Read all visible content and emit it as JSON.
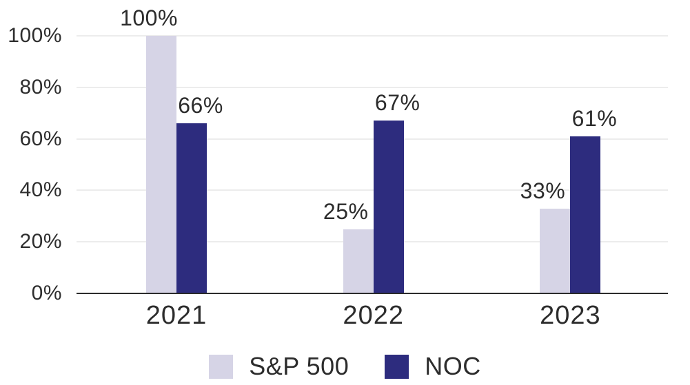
{
  "chart_data": {
    "type": "bar",
    "title": "",
    "categories": [
      "2021",
      "2022",
      "2023"
    ],
    "series": [
      {
        "name": "S&P 500",
        "color": "#D6D4E6",
        "values": [
          100,
          25,
          33
        ]
      },
      {
        "name": "NOC",
        "color": "#2D2C7E",
        "values": [
          66,
          67,
          61
        ]
      }
    ],
    "y_axis": {
      "ticks": [
        0,
        20,
        40,
        60,
        80,
        100
      ],
      "suffix": "%",
      "ylim": [
        0,
        100
      ]
    },
    "data_labels": [
      "100%",
      "66%",
      "25%",
      "67%",
      "33%",
      "61%"
    ],
    "grid": "horizontal",
    "legend_position": "bottom",
    "colors": {
      "sp500_bar": "#D6D4E6",
      "noc_bar": "#2D2C7E",
      "gridline": "#ECECEC",
      "axis_line": "#2B2B2B",
      "text": "#2C2C2C"
    }
  }
}
